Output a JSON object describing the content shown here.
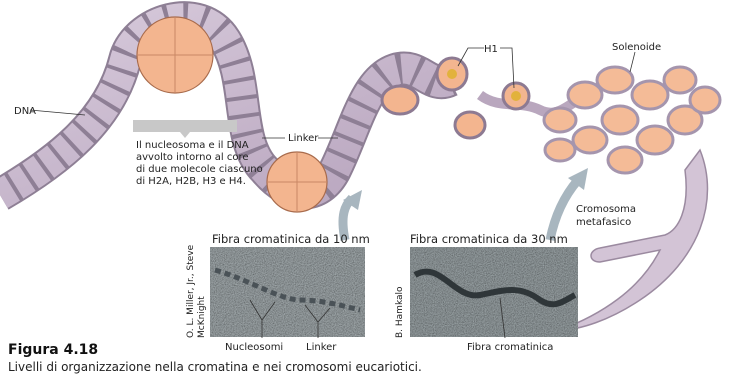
{
  "labels": {
    "dna": "DNA",
    "linker_top": "Linker",
    "h1": "H1",
    "solenoid": "Solenoide",
    "chromosome": [
      "Cromosoma",
      "metafasico"
    ]
  },
  "callout": [
    "Il nucleosoma e il DNA",
    "avvolto intorno al core",
    "di due molecole ciascuno",
    "di H2A, H2B, H3 e H4."
  ],
  "micrographs": [
    {
      "title": "Fibra cromatinica da 10 nm",
      "credit": [
        "O. L. Miller, Jr., Steve",
        "McKnight"
      ],
      "labels": [
        "Nucleosomi",
        "Linker"
      ]
    },
    {
      "title": "Fibra cromatinica da 30 nm",
      "credit": [
        "B. Hamkalo"
      ],
      "labels": [
        "Fibra cromatinica"
      ]
    }
  ],
  "caption": {
    "figure": "Figura 4.18",
    "text": "Livelli di organizzazione nella cromatina e nei cromosomi eucariotici."
  }
}
